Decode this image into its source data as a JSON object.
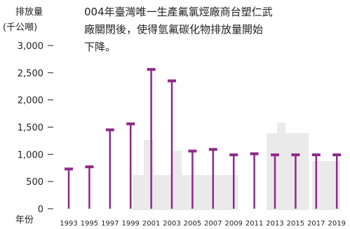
{
  "chart_data": {
    "type": "bar",
    "ylabel_lines": [
      "排放量",
      "(千公噸)"
    ],
    "xlabel": "年份",
    "ylim": [
      0,
      3000
    ],
    "y_ticks": [
      "3,000",
      "2,500",
      "2,000",
      "1,500",
      "1,000",
      "500",
      "0"
    ],
    "y_tick_values": [
      3000,
      2500,
      2000,
      1500,
      1000,
      500,
      0
    ],
    "categories": [
      "1993",
      "1995",
      "1997",
      "1999",
      "2001",
      "2003",
      "2005",
      "2007",
      "2009",
      "2011",
      "2013",
      "2015",
      "2017",
      "2019"
    ],
    "values": [
      730,
      770,
      1450,
      1560,
      2560,
      2350,
      1060,
      1090,
      990,
      1010,
      990,
      990,
      990,
      990
    ],
    "annotation_lines": [
      "004年臺灣唯一生產氟氯烴廠商台塑仁武",
      "廠關閉後，使得氫氟碳化物排放量開始",
      "下降。"
    ],
    "marker_color": "#8e2a8a",
    "grid": false
  }
}
